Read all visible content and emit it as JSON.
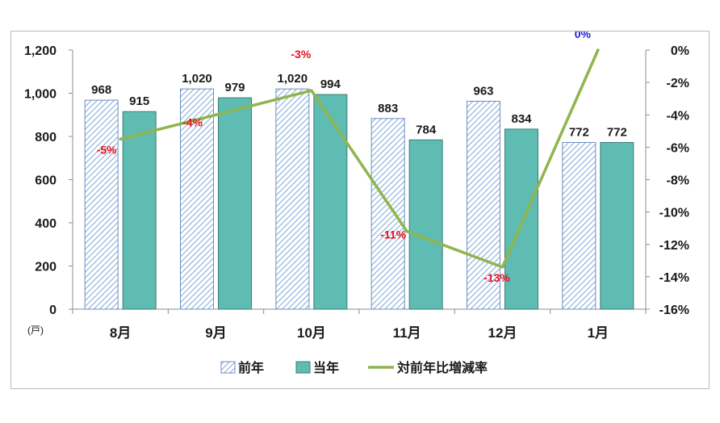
{
  "chart_data": {
    "type": "bar",
    "categories": [
      "8月",
      "9月",
      "10月",
      "11月",
      "12月",
      "1月"
    ],
    "series": [
      {
        "name": "前年",
        "values": [
          968,
          1020,
          1020,
          883,
          963,
          772
        ],
        "color": "#7ea6d6",
        "pattern": "diagonal-hatch"
      },
      {
        "name": "当年",
        "values": [
          915,
          979,
          994,
          784,
          834,
          772
        ],
        "color": "#5fbcb3"
      }
    ],
    "line_series": {
      "name": "対前年比増減率",
      "values": [
        -5,
        -4,
        -3,
        -11,
        -13,
        0
      ],
      "point_values": [
        -5.5,
        -4.0,
        -2.5,
        -11.2,
        -13.4,
        0.0
      ],
      "color": "#8fb54d",
      "label_colors": [
        "#e8101e",
        "#e8101e",
        "#e8101e",
        "#e8101e",
        "#e8101e",
        "#1f1fd6"
      ],
      "axis": "right"
    },
    "labels": {
      "bar_prev": [
        "968",
        "1,020",
        "1,020",
        "883",
        "963",
        "772"
      ],
      "bar_curr": [
        "915",
        "979",
        "994",
        "784",
        "834",
        "772"
      ],
      "rate": [
        "-5%",
        "-4%",
        "-3%",
        "-11%",
        "-13%",
        "0%"
      ]
    },
    "y_left": {
      "ylim": [
        0,
        1200
      ],
      "ticks": [
        "0",
        "200",
        "400",
        "600",
        "800",
        "1,000",
        "1,200"
      ],
      "unit": "(戸)"
    },
    "y_right": {
      "ylim": [
        -16,
        0
      ],
      "ticks": [
        "-16%",
        "-14%",
        "-12%",
        "-10%",
        "-8%",
        "-6%",
        "-4%",
        "-2%",
        "0%"
      ]
    },
    "legend": {
      "position": "bottom",
      "items": [
        "前年",
        "当年",
        "対前年比増減率"
      ]
    },
    "grid": false
  }
}
